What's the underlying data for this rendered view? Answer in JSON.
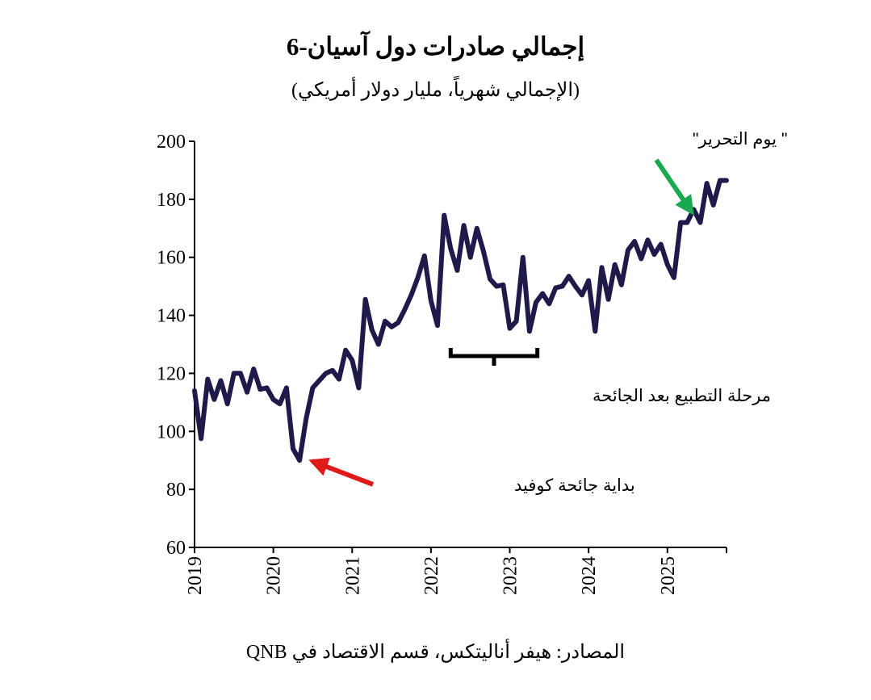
{
  "chart_data": {
    "type": "line",
    "title": "إجمالي صادرات دول آسيان-6",
    "subtitle": "(الإجمالي شهرياً، مليار دولار أمريكي)",
    "source": "المصادر: هيفر أناليتكس، قسم الاقتصاد في QNB",
    "ylim": [
      60,
      200
    ],
    "yticks": [
      60,
      80,
      100,
      120,
      140,
      160,
      180,
      200
    ],
    "xlim": [
      2019.0,
      2025.75
    ],
    "xtick_labels": [
      "2019",
      "2020",
      "2021",
      "2022",
      "2023",
      "2024",
      "2025"
    ],
    "series": [
      {
        "color": "#1e1a4a",
        "x": [
          2019.0,
          2019.083,
          2019.167,
          2019.25,
          2019.333,
          2019.417,
          2019.5,
          2019.583,
          2019.667,
          2019.75,
          2019.833,
          2019.917,
          2020.0,
          2020.083,
          2020.167,
          2020.25,
          2020.333,
          2020.417,
          2020.5,
          2020.583,
          2020.667,
          2020.75,
          2020.833,
          2020.917,
          2021.0,
          2021.083,
          2021.167,
          2021.25,
          2021.333,
          2021.417,
          2021.5,
          2021.583,
          2021.667,
          2021.75,
          2021.833,
          2021.917,
          2022.0,
          2022.083,
          2022.167,
          2022.25,
          2022.333,
          2022.417,
          2022.5,
          2022.583,
          2022.667,
          2022.75,
          2022.833,
          2022.917,
          2023.0,
          2023.083,
          2023.167,
          2023.25,
          2023.333,
          2023.417,
          2023.5,
          2023.583,
          2023.667,
          2023.75,
          2023.833,
          2023.917,
          2024.0,
          2024.083,
          2024.167,
          2024.25,
          2024.333,
          2024.417,
          2024.5,
          2024.583,
          2024.667,
          2024.75,
          2024.833,
          2024.917,
          2025.0,
          2025.083,
          2025.167,
          2025.25,
          2025.333,
          2025.417,
          2025.5,
          2025.583,
          2025.667,
          2025.75
        ],
        "values": [
          114,
          97.5,
          118,
          111,
          117.5,
          109.5,
          120,
          120,
          113.5,
          121.5,
          114.5,
          115,
          111,
          109.5,
          115,
          94,
          90,
          104.5,
          115,
          117.5,
          120,
          121,
          118,
          128,
          124.5,
          115,
          145.5,
          135,
          130,
          138,
          136,
          137.5,
          142,
          147,
          153,
          160.5,
          145,
          136.5,
          174.5,
          163,
          155.5,
          171,
          160,
          170,
          162,
          152.5,
          150,
          150.5,
          135.5,
          138,
          160,
          134.5,
          144.5,
          147.5,
          144,
          149.5,
          150,
          153.5,
          150,
          147,
          152,
          134.5,
          156.5,
          145.5,
          157.5,
          150.5,
          162.5,
          165.5,
          159.5,
          166,
          161,
          164.5,
          157.5,
          153,
          172,
          172,
          176.5,
          172,
          185.5,
          178,
          186.5,
          186.5
        ]
      }
    ],
    "annotations": [
      {
        "text": "بداية جائحة كوفيد",
        "color": "#e0191b",
        "target": [
          2020.35,
          90
        ]
      },
      {
        "text": "مرحلة التطبيع بعد الجائحة",
        "span": [
          2022.25,
          2023.35
        ]
      },
      {
        "text": "\"  يوم التحرير\"",
        "color": "#1aa94f",
        "target": [
          2025.33,
          175
        ]
      }
    ]
  }
}
